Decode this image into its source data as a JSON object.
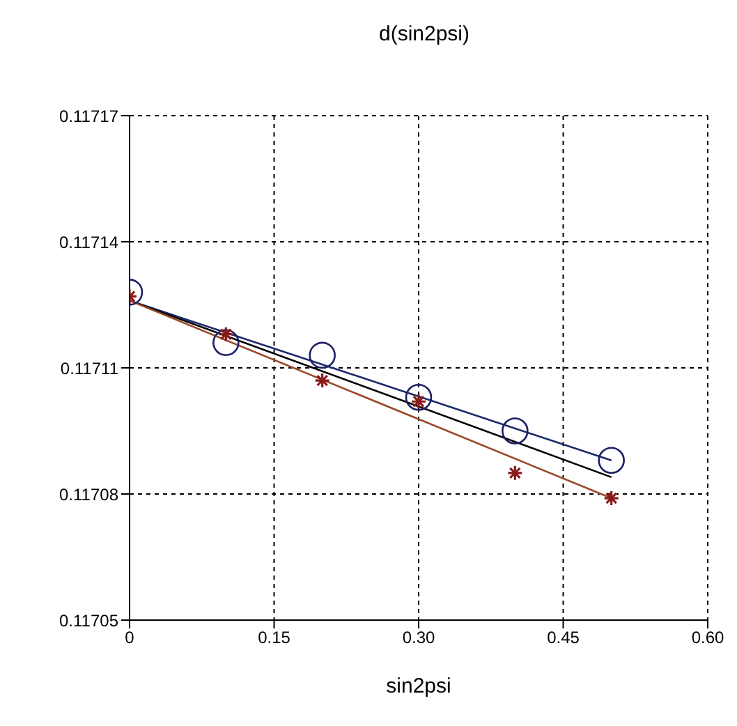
{
  "chart_data": {
    "type": "scatter",
    "title": "d(sin2psi)",
    "xlabel": "sin2psi",
    "xlim": [
      0,
      0.6
    ],
    "xticks": [
      0,
      0.15,
      {
        "value": 0.3,
        "label": "0.30"
      },
      0.45,
      {
        "value": 0.6,
        "label": "0.60"
      }
    ],
    "ylim": [
      0.11705,
      0.11717
    ],
    "yticks": [
      0.11705,
      0.11708,
      0.11711,
      0.11714,
      0.11717
    ],
    "grid": true,
    "legend": false,
    "series": [
      {
        "marker": "circle",
        "color": "#1c1f66",
        "x": [
          0,
          0.1,
          0.2,
          0.3,
          0.4,
          0.5
        ],
        "values": [
          0.117128,
          0.117116,
          0.117113,
          0.117103,
          0.117095,
          0.117088
        ]
      },
      {
        "marker": "cross",
        "color": "#8b1a1a",
        "x": [
          0,
          0.1,
          0.2,
          0.3,
          0.4,
          0.5
        ],
        "values": [
          0.117127,
          0.117118,
          0.117107,
          0.117102,
          0.117085,
          0.117079
        ]
      },
      {
        "type": "line",
        "marker": "none",
        "line_style": "solid",
        "color": "#1c2a6b",
        "x": [
          0,
          0.5
        ],
        "values": [
          0.117126,
          0.117088
        ]
      },
      {
        "type": "line",
        "marker": "none",
        "line_style": "solid",
        "color": "#000000",
        "x": [
          0,
          0.5
        ],
        "values": [
          0.117126,
          0.117084
        ]
      },
      {
        "type": "line",
        "marker": "none",
        "line_style": "solid",
        "color": "#9a4a2a",
        "x": [
          0,
          0.5
        ],
        "values": [
          0.117126,
          0.117079
        ]
      }
    ]
  }
}
